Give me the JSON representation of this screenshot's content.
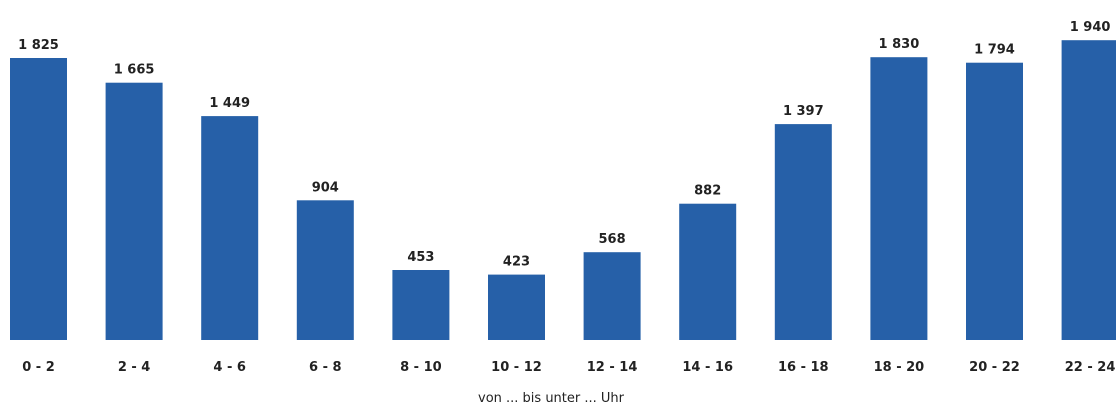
{
  "chart_data": {
    "type": "bar",
    "categories": [
      "0 - 2",
      "2 - 4",
      "4 - 6",
      "6 - 8",
      "8 - 10",
      "10 - 12",
      "12 - 14",
      "14 - 16",
      "16 - 18",
      "18 - 20",
      "20 - 22",
      "22 - 24"
    ],
    "values": [
      1825,
      1665,
      1449,
      904,
      453,
      423,
      568,
      882,
      1397,
      1830,
      1794,
      1940
    ],
    "value_labels": [
      "1 825",
      "1 665",
      "1 449",
      "904",
      "453",
      "423",
      "568",
      "882",
      "1 397",
      "1 830",
      "1 794",
      "1 940"
    ],
    "title": "",
    "xlabel": "von ... bis unter ... Uhr",
    "ylabel": "",
    "ylim": [
      0,
      1980
    ],
    "grid": false,
    "bar_color": "#2660a8"
  }
}
